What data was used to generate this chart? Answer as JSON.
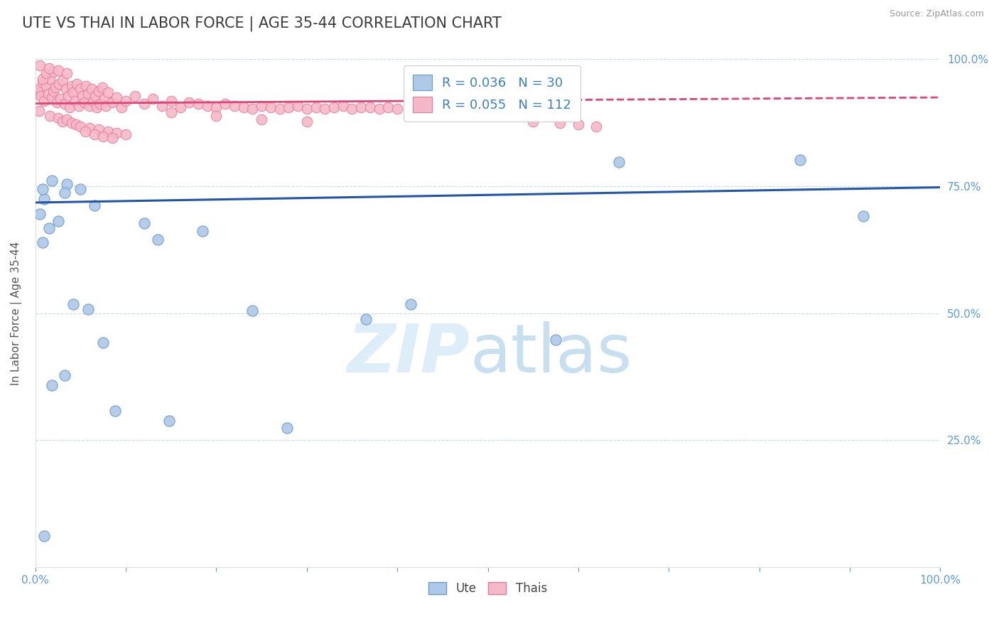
{
  "title": "UTE VS THAI IN LABOR FORCE | AGE 35-44 CORRELATION CHART",
  "source": "Source: ZipAtlas.com",
  "ylabel": "In Labor Force | Age 35-44",
  "title_color": "#3a3a3a",
  "title_fontsize": 15,
  "axis_color": "#5b9bd5",
  "background_color": "#ffffff",
  "ute_color": "#aec8e8",
  "ute_edge_color": "#6699cc",
  "thai_color": "#f5b8c8",
  "thai_edge_color": "#e87898",
  "ute_line_color": "#2255aa",
  "thai_line_color": "#dd4477",
  "grid_color": "#c8daf0",
  "legend_label_ute": "R = 0.036   N = 30",
  "legend_label_thai": "R = 0.055   N = 112",
  "legend_text_color": "#3a7fc1",
  "xlim": [
    0,
    1
  ],
  "ylim": [
    0,
    1
  ],
  "ute_x": [
    0.01,
    0.005,
    0.008,
    0.015,
    0.025,
    0.008,
    0.018,
    0.035,
    0.05,
    0.065,
    0.018,
    0.075,
    0.12,
    0.135,
    0.185,
    0.24,
    0.365,
    0.575,
    0.845,
    0.915,
    0.032,
    0.042,
    0.058,
    0.088,
    0.148,
    0.278,
    0.415,
    0.645,
    0.01,
    0.032
  ],
  "ute_y": [
    0.725,
    0.695,
    0.64,
    0.668,
    0.682,
    0.745,
    0.762,
    0.755,
    0.745,
    0.712,
    0.358,
    0.442,
    0.678,
    0.645,
    0.662,
    0.505,
    0.488,
    0.448,
    0.802,
    0.692,
    0.378,
    0.518,
    0.508,
    0.308,
    0.288,
    0.275,
    0.518,
    0.798,
    0.062,
    0.738
  ],
  "thai_x": [
    0.002,
    0.004,
    0.006,
    0.008,
    0.01,
    0.012,
    0.014,
    0.016,
    0.018,
    0.02,
    0.022,
    0.024,
    0.026,
    0.028,
    0.03,
    0.032,
    0.034,
    0.036,
    0.038,
    0.04,
    0.042,
    0.044,
    0.046,
    0.048,
    0.05,
    0.052,
    0.054,
    0.056,
    0.058,
    0.06,
    0.062,
    0.064,
    0.066,
    0.068,
    0.07,
    0.072,
    0.074,
    0.076,
    0.078,
    0.08,
    0.085,
    0.09,
    0.095,
    0.1,
    0.11,
    0.12,
    0.13,
    0.14,
    0.15,
    0.16,
    0.17,
    0.18,
    0.19,
    0.2,
    0.21,
    0.22,
    0.23,
    0.24,
    0.25,
    0.26,
    0.27,
    0.28,
    0.29,
    0.3,
    0.31,
    0.32,
    0.33,
    0.34,
    0.35,
    0.36,
    0.37,
    0.38,
    0.39,
    0.4,
    0.42,
    0.44,
    0.46,
    0.48,
    0.5,
    0.52,
    0.004,
    0.008,
    0.012,
    0.016,
    0.02,
    0.025,
    0.03,
    0.035,
    0.04,
    0.045,
    0.05,
    0.06,
    0.07,
    0.08,
    0.09,
    0.1,
    0.55,
    0.58,
    0.6,
    0.62,
    0.15,
    0.2,
    0.25,
    0.3,
    0.005,
    0.015,
    0.025,
    0.035,
    0.055,
    0.065,
    0.075,
    0.085
  ],
  "thai_y": [
    0.935,
    0.942,
    0.928,
    0.955,
    0.918,
    0.948,
    0.932,
    0.962,
    0.925,
    0.938,
    0.945,
    0.915,
    0.952,
    0.922,
    0.958,
    0.912,
    0.942,
    0.928,
    0.905,
    0.948,
    0.935,
    0.918,
    0.952,
    0.908,
    0.942,
    0.928,
    0.915,
    0.948,
    0.932,
    0.908,
    0.942,
    0.918,
    0.928,
    0.905,
    0.938,
    0.912,
    0.945,
    0.922,
    0.908,
    0.935,
    0.915,
    0.925,
    0.905,
    0.918,
    0.928,
    0.912,
    0.922,
    0.908,
    0.918,
    0.905,
    0.915,
    0.912,
    0.908,
    0.905,
    0.912,
    0.908,
    0.905,
    0.902,
    0.908,
    0.905,
    0.902,
    0.905,
    0.908,
    0.902,
    0.905,
    0.902,
    0.905,
    0.908,
    0.902,
    0.905,
    0.905,
    0.902,
    0.905,
    0.902,
    0.905,
    0.902,
    0.905,
    0.902,
    0.905,
    0.902,
    0.898,
    0.962,
    0.972,
    0.888,
    0.975,
    0.885,
    0.878,
    0.882,
    0.875,
    0.872,
    0.868,
    0.865,
    0.862,
    0.858,
    0.855,
    0.852,
    0.878,
    0.875,
    0.872,
    0.868,
    0.895,
    0.888,
    0.882,
    0.878,
    0.988,
    0.982,
    0.978,
    0.972,
    0.858,
    0.852,
    0.848,
    0.845
  ]
}
